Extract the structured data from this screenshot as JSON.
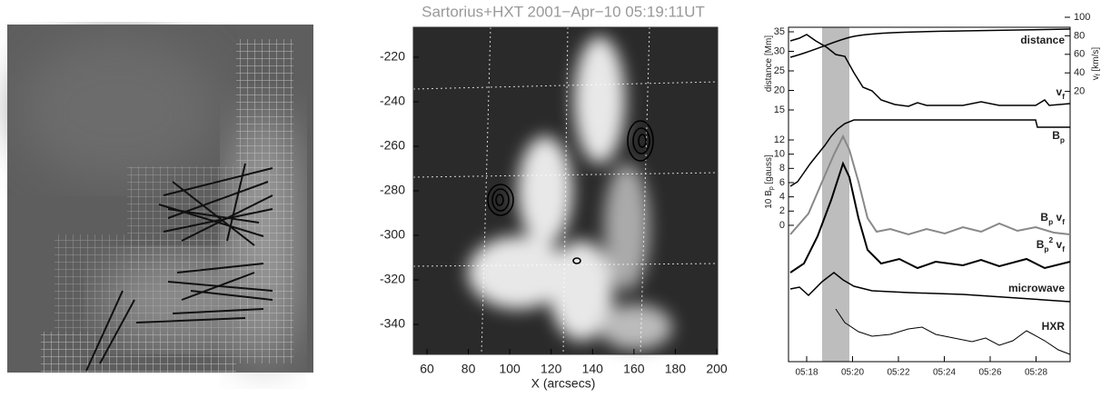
{
  "middle_panel": {
    "title": "Sartorius+HXT 2001−Apr−10 05:19:11UT",
    "x_label": "X (arcsecs)",
    "x_ticks": [
      60,
      80,
      100,
      120,
      140,
      160,
      180,
      200
    ],
    "y_ticks": [
      -220,
      -240,
      -260,
      -280,
      -300,
      -320,
      -340
    ]
  },
  "right_panel": {
    "time_ticks": [
      "05:18",
      "05:20",
      "05:22",
      "05:24",
      "05:26",
      "05:28"
    ],
    "distance_ticks": [
      35,
      30,
      25,
      20,
      15
    ],
    "distance_axis_label": [
      {
        "t": "distance [Mm]"
      }
    ],
    "speed_ticks": [
      100,
      80,
      60,
      40,
      20
    ],
    "speed_axis_label": [
      {
        "t": "v"
      },
      {
        "sub": "f"
      },
      {
        "t": " [km/s]"
      }
    ],
    "field_ticks": [
      12,
      10,
      8,
      6,
      4,
      2,
      0
    ],
    "field_axis_label": [
      {
        "t": "10 B"
      },
      {
        "sub": "p"
      },
      {
        "t": " [gauss]"
      }
    ],
    "curve_labels": [
      [
        {
          "t": "distance"
        }
      ],
      [
        {
          "t": "v"
        },
        {
          "sub": "f"
        }
      ],
      [
        {
          "t": "B"
        },
        {
          "sub": "p"
        }
      ],
      [
        {
          "t": "B"
        },
        {
          "sub": "p"
        },
        {
          "t": " v"
        },
        {
          "sub": "f"
        }
      ],
      [
        {
          "t": "B"
        },
        {
          "sub": "p"
        },
        {
          "sup": "2"
        },
        {
          "t": " v"
        },
        {
          "sub": "f"
        }
      ],
      [
        {
          "t": "microwave"
        }
      ],
      [
        {
          "t": "HXR"
        }
      ]
    ]
  }
}
